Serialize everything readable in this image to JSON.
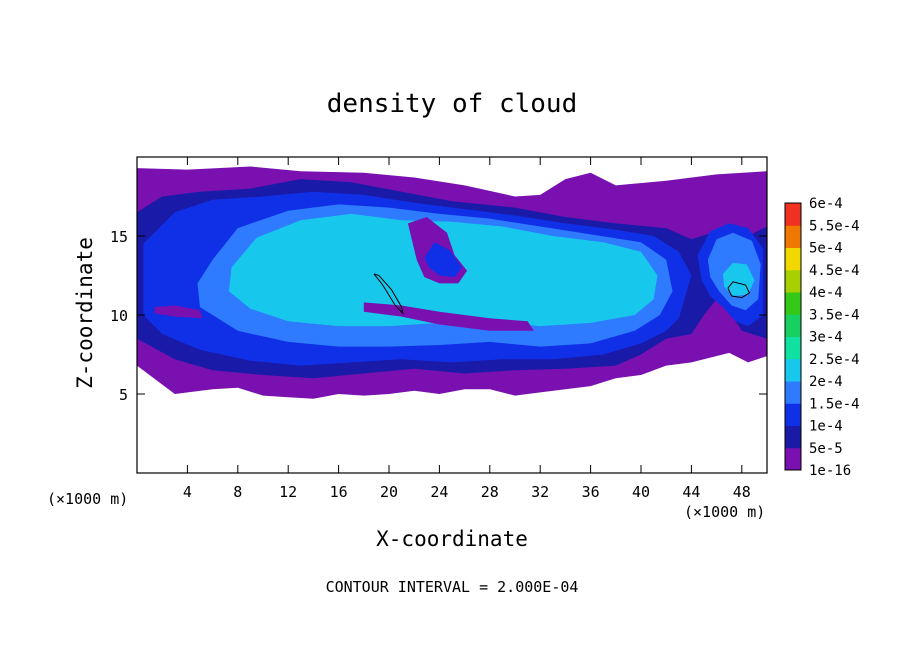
{
  "chart_data": {
    "type": "heatmap",
    "title": "density of cloud",
    "xlabel": "X-coordinate",
    "ylabel": "Z-coordinate",
    "x_unit": "(×1000 m)",
    "y_unit": "(×1000 m)",
    "xlim": [
      0,
      50
    ],
    "ylim": [
      0,
      20
    ],
    "x_ticks": [
      4,
      8,
      12,
      16,
      20,
      24,
      28,
      32,
      36,
      40,
      44,
      48
    ],
    "y_ticks": [
      5,
      10,
      15
    ],
    "footer": "CONTOUR INTERVAL = 2.000E-04",
    "colorbar": {
      "levels": [
        "1e-16",
        "5e-5",
        "1e-4",
        "1.5e-4",
        "2e-4",
        "2.5e-4",
        "3e-4",
        "3.5e-4",
        "4e-4",
        "4.5e-4",
        "5e-4",
        "5.5e-4",
        "6e-4"
      ],
      "colors": [
        "#7a10b0",
        "#1a1aa8",
        "#1030e8",
        "#2f7bff",
        "#18c8ec",
        "#10e0a0",
        "#18d060",
        "#34c818",
        "#a8d000",
        "#f0d800",
        "#f07800",
        "#f03020",
        "#f86868"
      ]
    },
    "regions": [
      {
        "level": "1e-16",
        "points": [
          [
            0,
            19.3
          ],
          [
            4,
            19.2
          ],
          [
            9,
            19.4
          ],
          [
            13,
            19.1
          ],
          [
            18,
            19.0
          ],
          [
            22,
            18.7
          ],
          [
            26,
            18.2
          ],
          [
            30,
            17.5
          ],
          [
            32,
            17.6
          ],
          [
            34,
            18.6
          ],
          [
            36,
            19.0
          ],
          [
            38,
            18.2
          ],
          [
            42,
            18.5
          ],
          [
            46,
            18.9
          ],
          [
            50,
            19.1
          ],
          [
            50,
            7.4
          ],
          [
            48.5,
            7.0
          ],
          [
            47,
            7.6
          ],
          [
            44,
            7.0
          ],
          [
            42,
            6.8
          ],
          [
            40,
            6.2
          ],
          [
            38,
            6.0
          ],
          [
            36,
            5.5
          ],
          [
            34,
            5.3
          ],
          [
            32,
            5.1
          ],
          [
            30,
            4.9
          ],
          [
            28,
            5.3
          ],
          [
            26,
            5.3
          ],
          [
            24,
            5.0
          ],
          [
            22,
            5.2
          ],
          [
            20,
            5.0
          ],
          [
            18,
            4.9
          ],
          [
            16,
            5.0
          ],
          [
            14,
            4.7
          ],
          [
            12,
            4.8
          ],
          [
            10,
            4.9
          ],
          [
            8,
            5.4
          ],
          [
            6,
            5.3
          ],
          [
            3,
            5.0
          ],
          [
            0,
            6.8
          ]
        ]
      },
      {
        "level": "5e-5",
        "points": [
          [
            0,
            16.5
          ],
          [
            2,
            17.5
          ],
          [
            5,
            17.8
          ],
          [
            9,
            18.0
          ],
          [
            13,
            18.6
          ],
          [
            17,
            18.4
          ],
          [
            21,
            17.8
          ],
          [
            25,
            17.2
          ],
          [
            30,
            16.8
          ],
          [
            34,
            16.2
          ],
          [
            38,
            15.8
          ],
          [
            42,
            15.5
          ],
          [
            44,
            14.8
          ],
          [
            46,
            15.3
          ],
          [
            48,
            14.8
          ],
          [
            50,
            15.6
          ],
          [
            50,
            8.5
          ],
          [
            48,
            9.0
          ],
          [
            47,
            10.2
          ],
          [
            46,
            11.0
          ],
          [
            45,
            10.0
          ],
          [
            44,
            8.8
          ],
          [
            42,
            8.5
          ],
          [
            40,
            7.5
          ],
          [
            38,
            6.8
          ],
          [
            34,
            6.6
          ],
          [
            30,
            6.5
          ],
          [
            26,
            6.3
          ],
          [
            22,
            6.6
          ],
          [
            18,
            6.3
          ],
          [
            14,
            6.0
          ],
          [
            10,
            6.2
          ],
          [
            6,
            6.5
          ],
          [
            3,
            7.2
          ],
          [
            0,
            8.5
          ]
        ]
      },
      {
        "level": "1e-4",
        "points": [
          [
            0.5,
            14.5
          ],
          [
            3,
            16.5
          ],
          [
            6,
            17.3
          ],
          [
            10,
            17.5
          ],
          [
            14,
            17.8
          ],
          [
            18,
            17.6
          ],
          [
            22,
            17.1
          ],
          [
            26,
            16.7
          ],
          [
            30,
            16.3
          ],
          [
            34,
            15.8
          ],
          [
            38,
            15.4
          ],
          [
            41,
            15.0
          ],
          [
            43,
            14.0
          ],
          [
            44,
            12.5
          ],
          [
            43,
            9.8
          ],
          [
            42,
            9.0
          ],
          [
            40,
            8.2
          ],
          [
            37,
            7.5
          ],
          [
            33,
            7.2
          ],
          [
            29,
            7.2
          ],
          [
            25,
            7.0
          ],
          [
            21,
            7.2
          ],
          [
            17,
            7.0
          ],
          [
            13,
            6.8
          ],
          [
            9,
            7.1
          ],
          [
            5,
            7.8
          ],
          [
            2,
            8.8
          ],
          [
            0.5,
            10.0
          ]
        ]
      },
      {
        "level": "1e-4",
        "points": [
          [
            44.5,
            13.8
          ],
          [
            45.5,
            15.3
          ],
          [
            47,
            15.8
          ],
          [
            48.5,
            15.5
          ],
          [
            49.7,
            14.2
          ],
          [
            49.7,
            10.0
          ],
          [
            48.5,
            9.3
          ],
          [
            47.5,
            9.6
          ],
          [
            46.5,
            10.5
          ],
          [
            45.5,
            11.2
          ],
          [
            44.8,
            12.2
          ]
        ]
      },
      {
        "level": "1.5e-4",
        "points": [
          [
            6,
            13.5
          ],
          [
            8,
            15.5
          ],
          [
            12,
            16.6
          ],
          [
            16,
            17.0
          ],
          [
            20,
            16.8
          ],
          [
            24,
            16.4
          ],
          [
            28,
            16.1
          ],
          [
            32,
            15.6
          ],
          [
            36,
            15.1
          ],
          [
            40,
            14.6
          ],
          [
            42,
            13.5
          ],
          [
            42.5,
            11.5
          ],
          [
            41.5,
            10.0
          ],
          [
            39.5,
            9.0
          ],
          [
            36,
            8.2
          ],
          [
            32,
            8.0
          ],
          [
            28,
            8.3
          ],
          [
            24,
            8.1
          ],
          [
            20,
            8.0
          ],
          [
            16,
            8.0
          ],
          [
            12,
            8.3
          ],
          [
            8,
            9.0
          ],
          [
            5,
            10.5
          ],
          [
            4.8,
            12.0
          ]
        ]
      },
      {
        "level": "1.5e-4",
        "points": [
          [
            45.3,
            13.5
          ],
          [
            46,
            14.8
          ],
          [
            47.3,
            15.2
          ],
          [
            48.8,
            14.7
          ],
          [
            49.5,
            13.2
          ],
          [
            49.3,
            11.0
          ],
          [
            48.3,
            10.3
          ],
          [
            47.2,
            10.6
          ],
          [
            46.2,
            11.5
          ],
          [
            45.5,
            12.4
          ]
        ]
      },
      {
        "level": "2e-4",
        "points": [
          [
            7.5,
            13.0
          ],
          [
            9.5,
            14.9
          ],
          [
            13,
            16.0
          ],
          [
            17,
            16.4
          ],
          [
            21,
            16.0
          ],
          [
            25,
            15.9
          ],
          [
            29,
            15.6
          ],
          [
            33,
            15.0
          ],
          [
            37,
            14.6
          ],
          [
            40,
            14.0
          ],
          [
            41.3,
            12.5
          ],
          [
            41,
            11.0
          ],
          [
            39.5,
            10.0
          ],
          [
            36,
            9.5
          ],
          [
            32,
            9.3
          ],
          [
            28,
            9.6
          ],
          [
            24,
            9.5
          ],
          [
            20,
            9.3
          ],
          [
            16,
            9.3
          ],
          [
            12,
            9.6
          ],
          [
            9,
            10.4
          ],
          [
            7.3,
            11.5
          ]
        ]
      },
      {
        "level": "2e-4",
        "points": [
          [
            46.5,
            12.6
          ],
          [
            47.3,
            13.3
          ],
          [
            48.4,
            13.2
          ],
          [
            49.0,
            12.2
          ],
          [
            48.5,
            11.3
          ],
          [
            47.3,
            11.2
          ],
          [
            46.6,
            11.8
          ]
        ]
      },
      {
        "level": "1e-16",
        "points": [
          [
            21.5,
            15.8
          ],
          [
            23,
            16.2
          ],
          [
            24.6,
            15.2
          ],
          [
            25.2,
            13.8
          ],
          [
            26.2,
            12.8
          ],
          [
            25.5,
            12.0
          ],
          [
            24,
            12.0
          ],
          [
            22.8,
            12.4
          ],
          [
            22.2,
            13.5
          ]
        ]
      },
      {
        "level": "1e-4",
        "points": [
          [
            22.8,
            13.6
          ],
          [
            23.6,
            14.6
          ],
          [
            24.8,
            14.1
          ],
          [
            25.8,
            13.0
          ],
          [
            25.2,
            12.4
          ],
          [
            24.0,
            12.5
          ],
          [
            23.2,
            13.0
          ]
        ]
      },
      {
        "level": "1e-16",
        "points": [
          [
            18,
            10.8
          ],
          [
            21,
            10.6
          ],
          [
            24,
            10.2
          ],
          [
            28,
            9.8
          ],
          [
            31,
            9.6
          ],
          [
            31.5,
            9.0
          ],
          [
            28,
            9.0
          ],
          [
            24,
            9.4
          ],
          [
            21,
            9.9
          ],
          [
            18,
            10.2
          ]
        ]
      },
      {
        "level": "1e-16",
        "points": [
          [
            1.4,
            10.5
          ],
          [
            3,
            10.6
          ],
          [
            5,
            10.3
          ],
          [
            5.2,
            9.8
          ],
          [
            3,
            9.9
          ],
          [
            1.4,
            10.1
          ]
        ]
      }
    ],
    "contour_lines": [
      [
        [
          18.8,
          12.6
        ],
        [
          19.5,
          11.9
        ],
        [
          20.5,
          10.6
        ],
        [
          21.1,
          10.1
        ],
        [
          21.0,
          10.5
        ],
        [
          20.2,
          11.6
        ],
        [
          19.2,
          12.5
        ],
        [
          18.8,
          12.6
        ]
      ],
      [
        [
          46.9,
          11.7
        ],
        [
          47.3,
          12.1
        ],
        [
          48.3,
          11.9
        ],
        [
          48.6,
          11.4
        ],
        [
          48.0,
          11.1
        ],
        [
          47.2,
          11.2
        ],
        [
          46.9,
          11.7
        ]
      ]
    ]
  }
}
